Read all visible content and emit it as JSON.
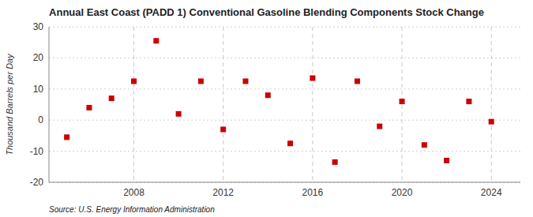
{
  "chart_data": {
    "type": "scatter",
    "title": "Annual East Coast (PADD 1) Conventional Gasoline Blending Components Stock Change",
    "ylabel": "Thousand Barrels per Day",
    "source": "Source: U.S. Energy Information Administration",
    "x": [
      2005,
      2006,
      2007,
      2008,
      2009,
      2010,
      2011,
      2012,
      2013,
      2014,
      2015,
      2016,
      2017,
      2018,
      2019,
      2020,
      2021,
      2022,
      2023,
      2024
    ],
    "values": [
      -5.5,
      4.0,
      7.0,
      12.5,
      25.5,
      2.0,
      12.5,
      -3.0,
      12.5,
      8.0,
      -7.5,
      13.5,
      -13.5,
      12.5,
      -2.0,
      6.0,
      -8.0,
      -13.0,
      6.0,
      -0.5
    ],
    "color": "#cc0000",
    "marker": "square",
    "xlim": [
      2004.2,
      2025.3
    ],
    "xticks": [
      2008,
      2012,
      2016,
      2020,
      2024
    ],
    "ylim": [
      -20,
      30
    ],
    "yticks": [
      -20,
      -10,
      0,
      10,
      20,
      30
    ],
    "grid": true
  }
}
